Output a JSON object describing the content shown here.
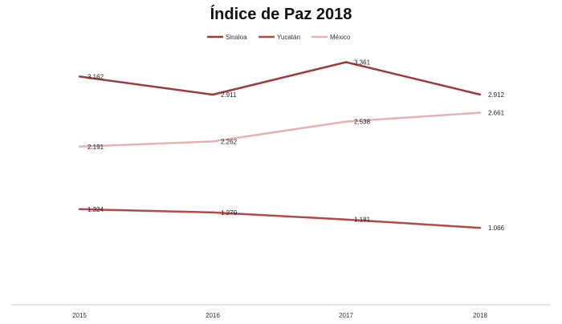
{
  "chart_data": {
    "type": "line",
    "title": "Índice de Paz 2018",
    "categories": [
      "2015",
      "2016",
      "2017",
      "2018"
    ],
    "series": [
      {
        "name": "Sinaloa",
        "values": [
          3.162,
          2.911,
          3.361,
          2.912
        ],
        "labels": [
          "3.162",
          "2.911",
          "3.361",
          "2.912"
        ],
        "color": "#9b3b3b"
      },
      {
        "name": "Yucatán",
        "values": [
          1.324,
          1.279,
          1.181,
          1.066
        ],
        "labels": [
          "1.324",
          "1.279",
          "1.181",
          "1.066"
        ],
        "color": "#b54848"
      },
      {
        "name": "México",
        "values": [
          2.191,
          2.262,
          2.538,
          2.661
        ],
        "labels": [
          "2.191",
          "2.262",
          "2.538",
          "2.661"
        ],
        "color": "#e3b3b3"
      }
    ],
    "ylim": [
      0.0,
      4.0
    ],
    "grid": false,
    "legend_position": "top-center"
  }
}
